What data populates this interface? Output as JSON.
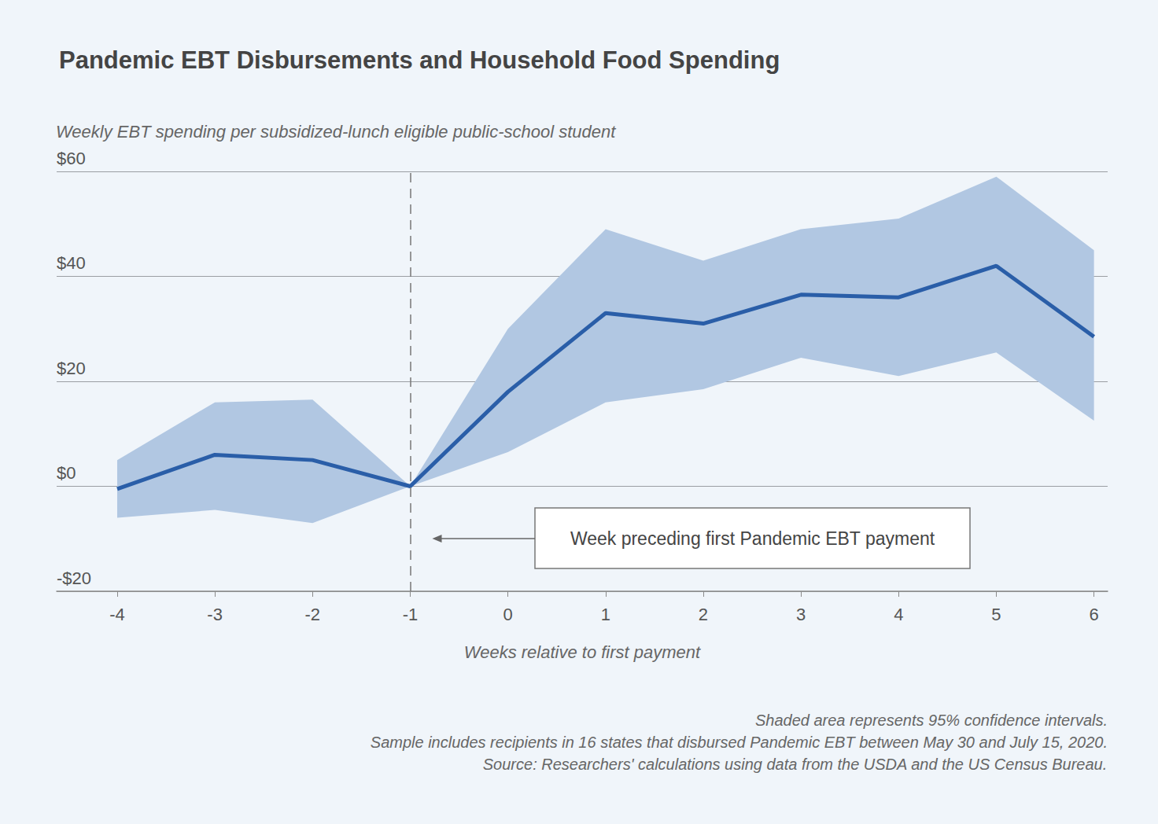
{
  "chart_data": {
    "type": "line",
    "title": "Pandemic EBT Disbursements and Household Food Spending",
    "y_label": "Weekly EBT spending per subsidized-lunch eligible public-school student",
    "x_label": "Weeks relative to first payment",
    "x": [
      -4,
      -3,
      -2,
      -1,
      0,
      1,
      2,
      3,
      4,
      5,
      6
    ],
    "values": [
      -0.5,
      6,
      5,
      0,
      18,
      33,
      31,
      36.5,
      36,
      42,
      28.5
    ],
    "ci_lower": [
      -6,
      -4.5,
      -7,
      0,
      6.5,
      16,
      18.5,
      24.5,
      21,
      25.5,
      12.5
    ],
    "ci_upper": [
      5,
      16,
      16.5,
      0,
      30,
      49,
      43,
      49,
      51,
      59,
      45
    ],
    "color": "#2a5ea8",
    "xlim": [
      -4.62,
      6.14
    ],
    "xticks": [
      -4,
      -3,
      -2,
      -1,
      0,
      1,
      2,
      3,
      4,
      5,
      6
    ],
    "ylim": [
      -20,
      60
    ],
    "yticks": [
      {
        "value": -20,
        "label": "-$20"
      },
      {
        "value": 0,
        "label": "$0"
      },
      {
        "value": 20,
        "label": "$20"
      },
      {
        "value": 40,
        "label": "$40"
      },
      {
        "value": 60,
        "label": "$60"
      }
    ],
    "grid": true,
    "annotations": [
      {
        "text": "Week preceding first Pandemic EBT payment",
        "x": -1
      }
    ],
    "notes": [
      "Shaded area represents 95% confidence intervals.",
      "Sample includes recipients in 16 states that disbursed Pandemic EBT between May 30 and July 15, 2020.",
      "Source: Researchers' calculations using data from the USDA and the US Census Bureau."
    ]
  }
}
